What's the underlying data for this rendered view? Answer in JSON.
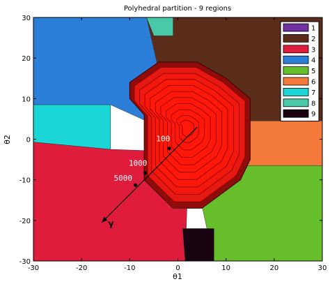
{
  "chart_data": {
    "type": "partition",
    "title": "Polyhedral partition - 9 regions",
    "xlabel": "θ1",
    "ylabel": "θ2",
    "xlim": [
      -30,
      30
    ],
    "ylim": [
      -30,
      30
    ],
    "xticks": [
      -30,
      -20,
      -10,
      0,
      10,
      20,
      30
    ],
    "yticks": [
      30,
      20,
      10,
      0,
      -10,
      -20,
      -30
    ],
    "grid": false,
    "legend_position": "top-right",
    "regions": [
      {
        "label": "1",
        "color": "#7030a0",
        "polygon": []
      },
      {
        "label": "2",
        "color": "#5a2c1a",
        "polygon": [
          [
            -6.5,
            30
          ],
          [
            30,
            30
          ],
          [
            30,
            4.5
          ],
          [
            13.5,
            4.5
          ],
          [
            -1,
            1.5
          ]
        ]
      },
      {
        "label": "3",
        "color": "#e01c3c",
        "polygon": [
          [
            -30,
            -0.7
          ],
          [
            -14,
            -2.5
          ],
          [
            -2,
            -3
          ],
          [
            2,
            -13
          ],
          [
            1.5,
            -30
          ],
          [
            -30,
            -30
          ]
        ]
      },
      {
        "label": "4",
        "color": "#2b7fd8",
        "polygon": [
          [
            -30,
            30
          ],
          [
            -6.5,
            30
          ],
          [
            -1,
            1.5
          ],
          [
            -14,
            8.5
          ],
          [
            -30,
            8.5
          ]
        ]
      },
      {
        "label": "5",
        "color": "#66bf2a",
        "polygon": [
          [
            14.5,
            -6.5
          ],
          [
            30,
            -6.5
          ],
          [
            30,
            -30
          ],
          [
            7.5,
            -30
          ],
          [
            4,
            -11
          ]
        ]
      },
      {
        "label": "6",
        "color": "#f47a3c",
        "polygon": [
          [
            13.5,
            4.5
          ],
          [
            30,
            4.5
          ],
          [
            30,
            -6.5
          ],
          [
            14.5,
            -6.5
          ]
        ]
      },
      {
        "label": "7",
        "color": "#1ad6d6",
        "polygon": [
          [
            -30,
            8.5
          ],
          [
            -14,
            8.5
          ],
          [
            -14,
            -2.5
          ],
          [
            -30,
            -0.7
          ]
        ]
      },
      {
        "label": "8",
        "color": "#4ac9a8",
        "polygon": [
          [
            -6.5,
            30
          ],
          [
            -1,
            30
          ],
          [
            -1,
            25.5
          ],
          [
            -5,
            25.5
          ]
        ]
      },
      {
        "label": "9",
        "color": "#1a0412",
        "polygon": [
          [
            1,
            -22
          ],
          [
            7.5,
            -22
          ],
          [
            7.5,
            -30
          ],
          [
            1.5,
            -30
          ]
        ]
      }
    ],
    "red_region": {
      "color": "#ff1a0a",
      "outer": [
        [
          -10,
          14
        ],
        [
          -10,
          10
        ],
        [
          -7,
          6
        ],
        [
          -7,
          -10
        ],
        [
          -1,
          -17
        ],
        [
          5,
          -17
        ],
        [
          13,
          -10
        ],
        [
          15,
          -5
        ],
        [
          15,
          10
        ],
        [
          10,
          15
        ],
        [
          4,
          19
        ],
        [
          -4,
          19
        ]
      ],
      "contour_scales": [
        1.0,
        0.9,
        0.8,
        0.7,
        0.6,
        0.5,
        0.4,
        0.3,
        0.2,
        0.12
      ]
    },
    "annotations": [
      {
        "text": "100",
        "x": -4.5,
        "y": -0.5
      },
      {
        "text": "1000",
        "x": -10.2,
        "y": -6.5
      },
      {
        "text": "5000",
        "x": -13.3,
        "y": -10.2
      }
    ],
    "arrow": {
      "label": "γ",
      "points": [
        [
          -1.8,
          -2.3
        ],
        [
          -6.8,
          -8.3
        ],
        [
          -8.8,
          -11.3
        ]
      ],
      "start": [
        4,
        3
      ],
      "end": [
        -15.8,
        -20.5
      ]
    }
  }
}
